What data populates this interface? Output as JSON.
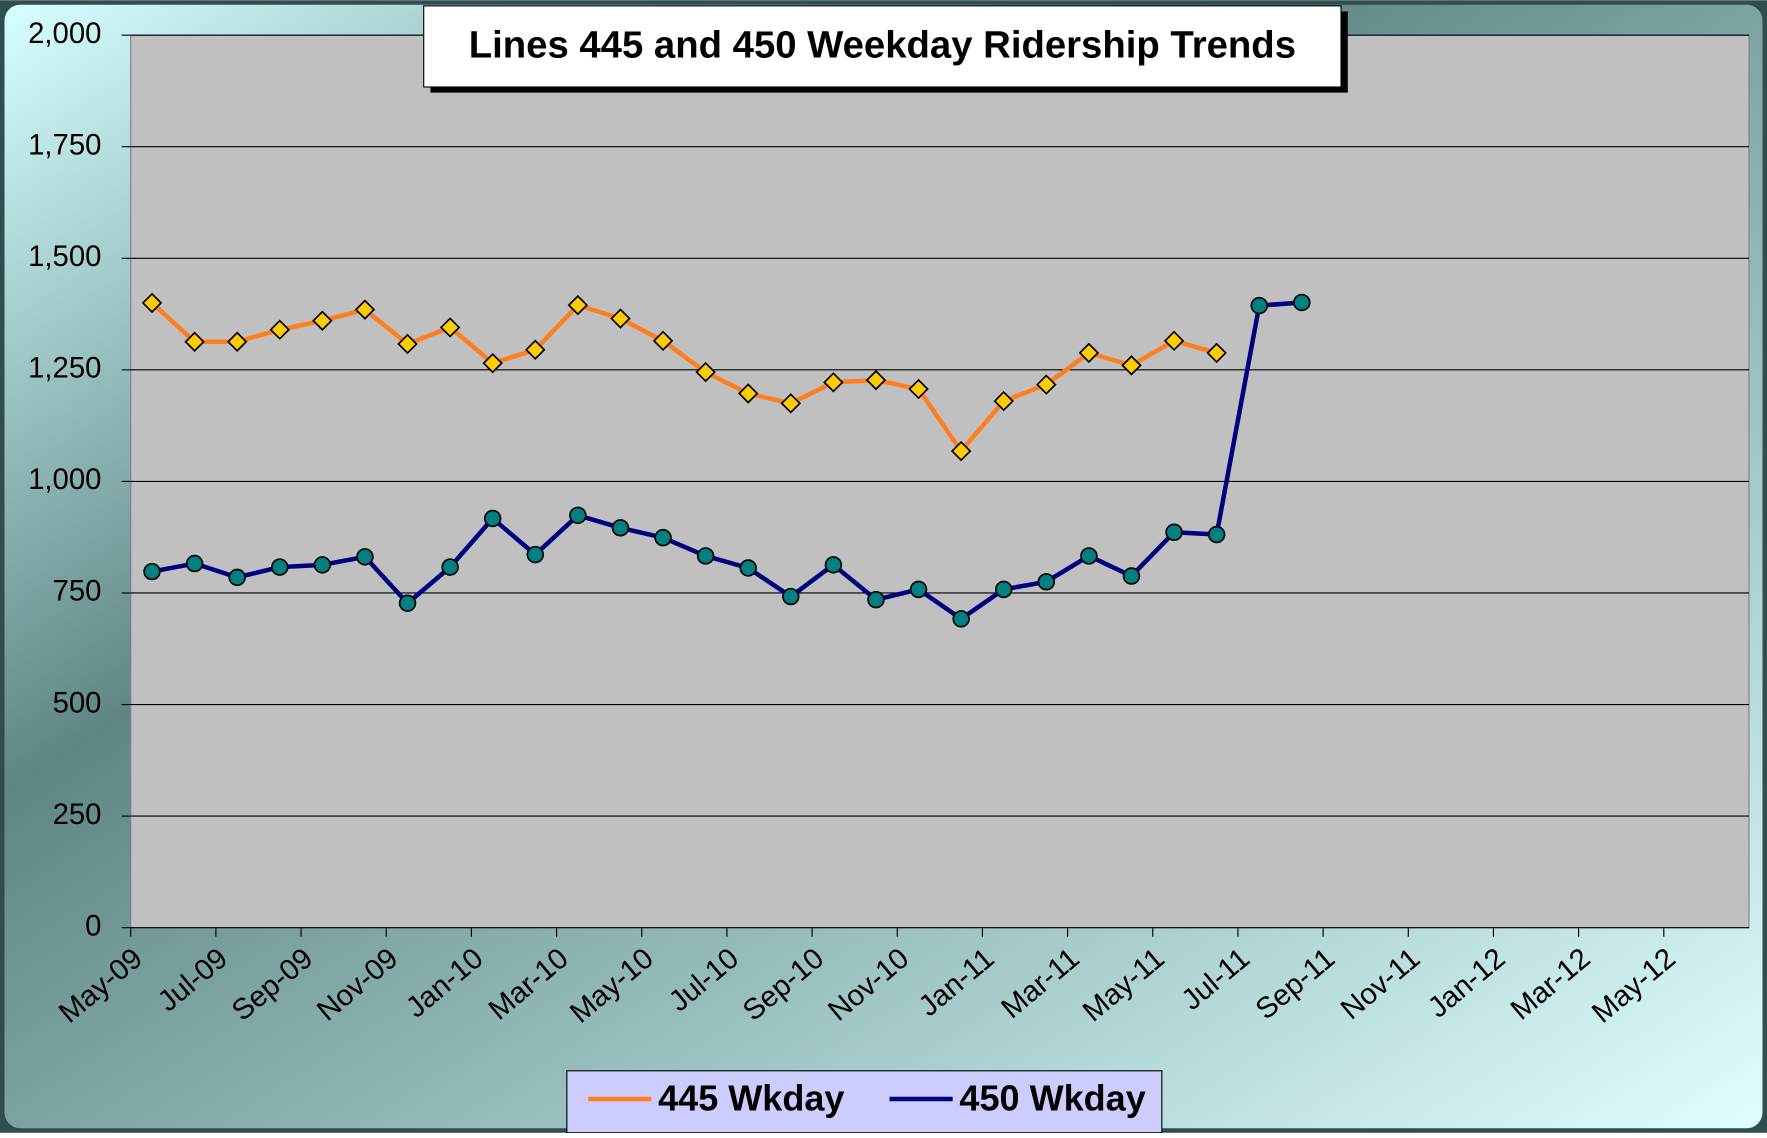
{
  "chart_data": {
    "type": "line",
    "title": "Lines 445 and 450 Weekday Ridership Trends",
    "categories": [
      "May-09",
      null,
      "Jul-09",
      null,
      "Sep-09",
      null,
      "Nov-09",
      null,
      "Jan-10",
      null,
      "Mar-10",
      null,
      "May-10",
      null,
      "Jul-10",
      null,
      "Sep-10",
      null,
      "Nov-10",
      null,
      "Jan-11",
      null,
      "Mar-11",
      null,
      "May-11",
      null,
      "Jul-11",
      null,
      "Sep-11",
      null,
      "Nov-11",
      null,
      "Jan-12",
      null,
      "Mar-12",
      null,
      "May-12",
      null
    ],
    "series": [
      {
        "name": "445 Wkday",
        "color": "#ff7f1e",
        "marker_color": "#ffcc00",
        "marker": "diamond",
        "values": [
          1400,
          1313,
          1313,
          1340,
          1360,
          1385,
          1308,
          1345,
          1265,
          1295,
          1395,
          1365,
          1315,
          1245,
          1197,
          1175,
          1222,
          1227,
          1207,
          1068,
          1180,
          1217,
          1288,
          1260,
          1315,
          1288,
          null,
          null,
          null,
          null,
          null,
          null,
          null,
          null,
          null,
          null,
          null,
          null
        ]
      },
      {
        "name": "450 Wkday",
        "color": "#000080",
        "marker_color": "#008080",
        "marker": "circle",
        "values": [
          798,
          816,
          785,
          808,
          813,
          831,
          727,
          808,
          917,
          836,
          924,
          896,
          874,
          833,
          806,
          742,
          813,
          735,
          758,
          692,
          758,
          775,
          833,
          788,
          886,
          881,
          1394,
          1401,
          null,
          null,
          null,
          null,
          null,
          null,
          null,
          null,
          null,
          null
        ]
      }
    ],
    "ylim": [
      0,
      2000
    ],
    "yticks": [
      0,
      {
        "value": 250,
        "label": "250"
      },
      500,
      750,
      {
        "value": 1000,
        "label": "1,000"
      },
      {
        "value": 1250,
        "label": "1,250"
      },
      {
        "value": 1500,
        "label": "1,500"
      },
      {
        "value": 1750,
        "label": "1,750"
      },
      {
        "value": 2000,
        "label": "2,000"
      }
    ],
    "grid": true,
    "legend": "bottom"
  }
}
